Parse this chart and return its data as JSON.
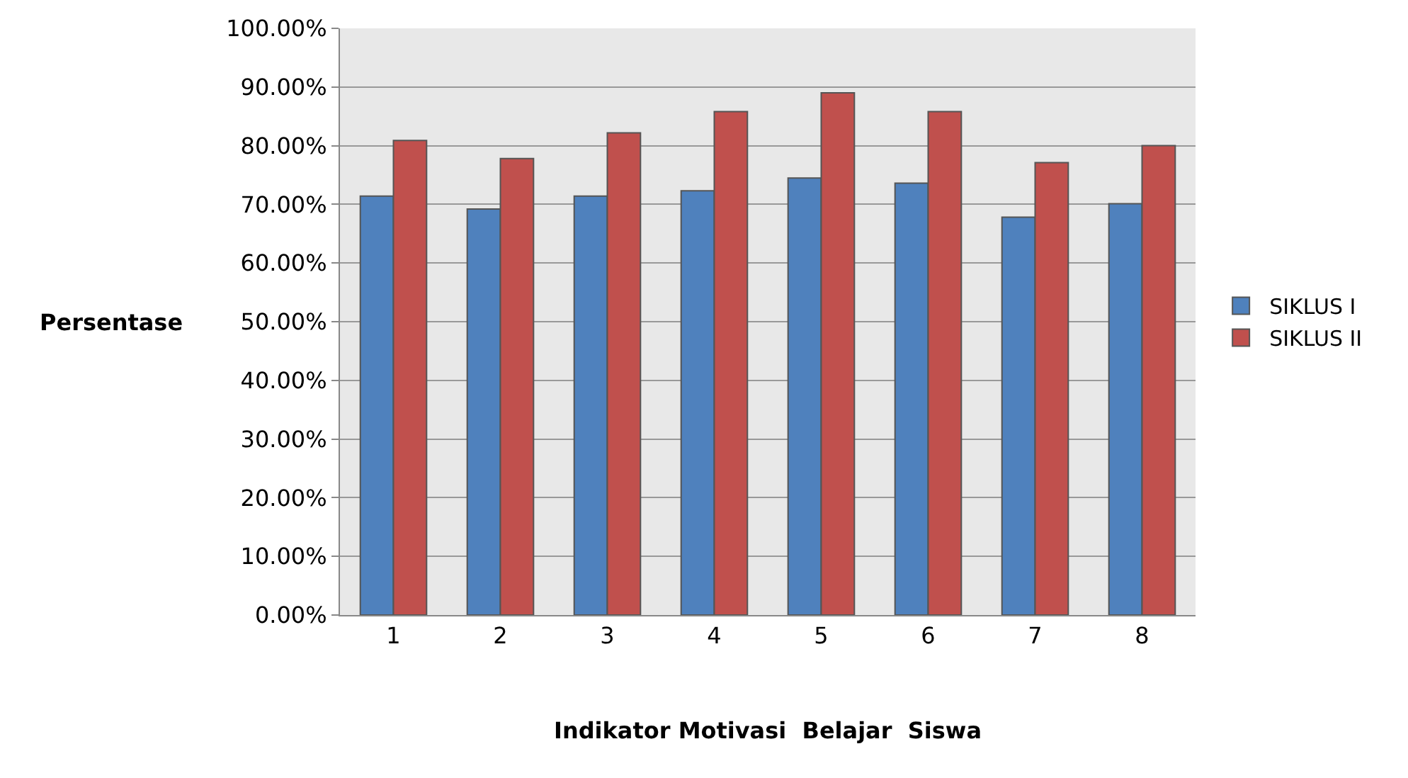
{
  "chart_data": {
    "type": "bar",
    "xlabel": "Indikator Motivasi  Belajar  Siswa",
    "ylabel": "Persentase",
    "categories": [
      "1",
      "2",
      "3",
      "4",
      "5",
      "6",
      "7",
      "8"
    ],
    "series": [
      {
        "name": "SIKLUS I",
        "color": "#4f81bd",
        "values": [
          71.4,
          69.2,
          71.4,
          72.3,
          74.5,
          73.6,
          67.8,
          70.1
        ]
      },
      {
        "name": "SIKLUS II",
        "color": "#c0504d",
        "values": [
          80.9,
          77.8,
          82.2,
          85.8,
          89.0,
          85.8,
          77.1,
          80.0
        ]
      }
    ],
    "ylim": [
      0,
      100
    ],
    "yticks": [
      {
        "value": 0,
        "label": "0.00%"
      },
      {
        "value": 10,
        "label": "10.00%"
      },
      {
        "value": 20,
        "label": "20.00%"
      },
      {
        "value": 30,
        "label": "30.00%"
      },
      {
        "value": 40,
        "label": "40.00%"
      },
      {
        "value": 50,
        "label": "50.00%"
      },
      {
        "value": 60,
        "label": "60.00%"
      },
      {
        "value": 70,
        "label": "70.00%"
      },
      {
        "value": 80,
        "label": "80.00%"
      },
      {
        "value": 90,
        "label": "90.00%"
      },
      {
        "value": 100,
        "label": "100.00%"
      }
    ],
    "grid": "y",
    "legend": "right"
  }
}
